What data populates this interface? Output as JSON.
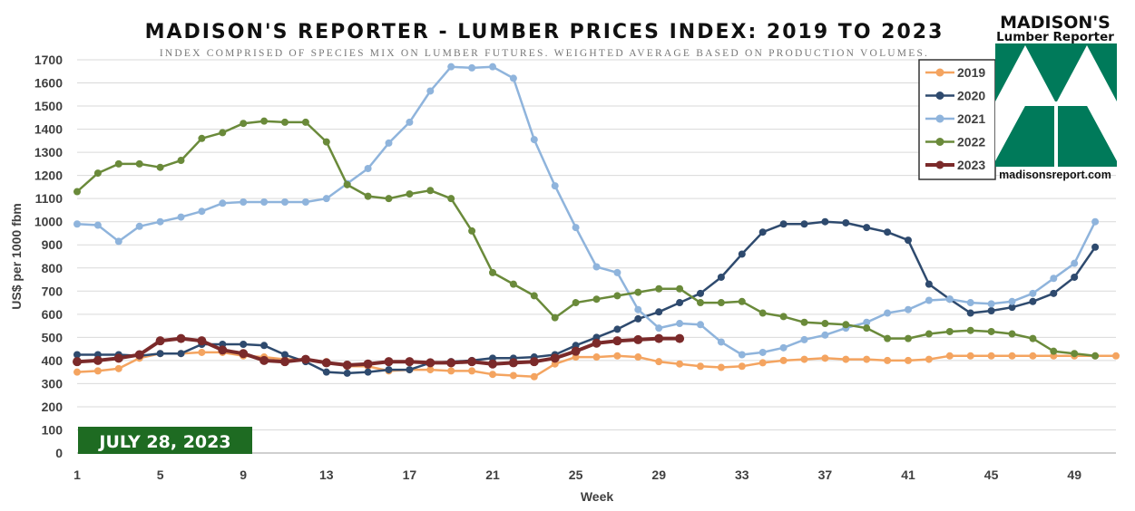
{
  "chart_data": {
    "type": "line",
    "title": "MADISON'S REPORTER - LUMBER PRICES INDEX: 2019 TO 2023",
    "subtitle": "INDEX COMPRISED OF SPECIES MIX ON LUMBER FUTURES. WEIGHTED AVERAGE BASED ON PRODUCTION VOLUMES.",
    "xlabel": "Week",
    "ylabel": "US$ per 1000 fbm",
    "xlim": [
      1,
      51
    ],
    "ylim": [
      0,
      1700
    ],
    "x_ticks": [
      1,
      5,
      9,
      13,
      17,
      21,
      25,
      29,
      33,
      37,
      41,
      45,
      49
    ],
    "y_ticks": [
      0,
      100,
      200,
      300,
      400,
      500,
      600,
      700,
      800,
      900,
      1000,
      1100,
      1200,
      1300,
      1400,
      1500,
      1600,
      1700
    ],
    "grid": "horizontal",
    "legend_position": "top-right",
    "date_label": "JULY 28, 2023",
    "series": [
      {
        "name": "2019",
        "color": "#f4a460",
        "width": 2.5,
        "values": [
          350,
          355,
          365,
          410,
          430,
          430,
          435,
          435,
          420,
          415,
          405,
          405,
          395,
          375,
          375,
          355,
          360,
          360,
          355,
          355,
          340,
          335,
          330,
          385,
          415,
          415,
          420,
          415,
          395,
          385,
          375,
          370,
          375,
          390,
          400,
          405,
          410,
          405,
          405,
          400,
          400,
          405,
          420,
          420,
          420,
          420,
          420,
          420,
          420,
          420,
          420
        ]
      },
      {
        "name": "2020",
        "color": "#2e4a6e",
        "width": 2.5,
        "values": [
          425,
          425,
          425,
          420,
          430,
          430,
          470,
          470,
          470,
          465,
          425,
          395,
          350,
          345,
          350,
          360,
          360,
          390,
          395,
          400,
          410,
          410,
          415,
          425,
          465,
          500,
          535,
          580,
          610,
          650,
          690,
          760,
          860,
          955,
          990,
          990,
          1000,
          995,
          975,
          955,
          920,
          730,
          665,
          605,
          615,
          630,
          655,
          690,
          760,
          890
        ]
      },
      {
        "name": "2021",
        "color": "#8fb4dc",
        "width": 2.5,
        "values": [
          990,
          985,
          915,
          980,
          1000,
          1020,
          1045,
          1080,
          1085,
          1085,
          1085,
          1085,
          1100,
          1165,
          1230,
          1340,
          1430,
          1565,
          1670,
          1665,
          1670,
          1620,
          1355,
          1155,
          975,
          805,
          780,
          620,
          540,
          560,
          555,
          480,
          425,
          435,
          455,
          490,
          510,
          540,
          565,
          605,
          620,
          660,
          665,
          650,
          645,
          655,
          690,
          755,
          820,
          1000
        ]
      },
      {
        "name": "2022",
        "color": "#6a8a3a",
        "width": 2.5,
        "values": [
          1130,
          1210,
          1250,
          1250,
          1235,
          1265,
          1360,
          1385,
          1425,
          1435,
          1430,
          1430,
          1345,
          1160,
          1110,
          1100,
          1120,
          1135,
          1100,
          960,
          780,
          730,
          680,
          585,
          650,
          665,
          680,
          695,
          710,
          710,
          650,
          650,
          655,
          605,
          590,
          565,
          560,
          555,
          540,
          495,
          495,
          515,
          525,
          530,
          525,
          515,
          495,
          440,
          430,
          420
        ]
      },
      {
        "name": "2023",
        "color": "#7b2a2a",
        "width": 4,
        "values": [
          395,
          400,
          410,
          425,
          485,
          495,
          485,
          445,
          430,
          400,
          395,
          405,
          390,
          380,
          385,
          395,
          395,
          390,
          390,
          395,
          385,
          390,
          395,
          410,
          440,
          475,
          485,
          490,
          495,
          495
        ]
      }
    ]
  },
  "logo": {
    "line1": "MADISON'S",
    "line2": "Lumber Reporter",
    "url": "madisonsreport.com",
    "color": "#007a5a"
  },
  "colors": {
    "date_badge": "#1e6b22",
    "grid": "#d9d9d9",
    "axis": "#bfbfbf"
  }
}
